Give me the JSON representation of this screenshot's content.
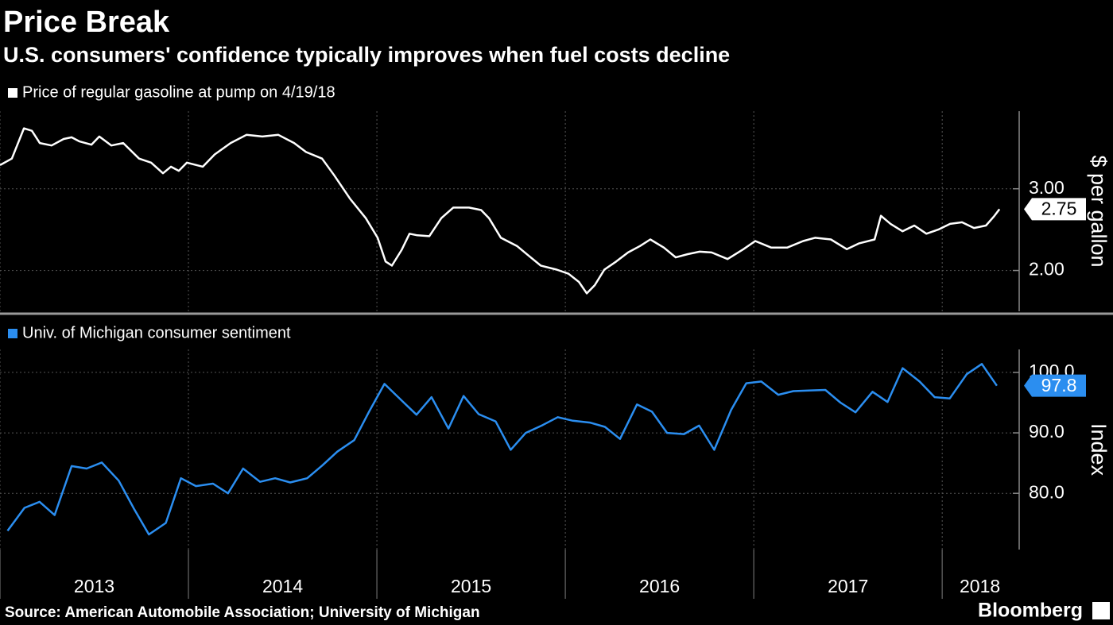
{
  "title": "Price Break",
  "subtitle": "U.S. consumers' confidence typically improves when fuel costs decline",
  "source": "Source: American Automobile Association; University of Michigan",
  "brand": "Bloomberg",
  "chart_data": [
    {
      "type": "line",
      "y_label": "$ per gallon",
      "grid": true,
      "xlim": [
        2013,
        2018.4
      ],
      "xticks": [
        2013,
        2014,
        2015,
        2016,
        2017,
        2018
      ],
      "ylim": [
        1.5,
        3.95
      ],
      "yticks": [
        {
          "value": 2,
          "label": "2.00"
        },
        {
          "value": 3,
          "label": "3.00"
        }
      ],
      "x": [
        2013.0,
        2013.063,
        2013.127,
        2013.169,
        2013.211,
        2013.274,
        2013.338,
        2013.38,
        2013.422,
        2013.485,
        2013.527,
        2013.591,
        2013.654,
        2013.738,
        2013.802,
        2013.865,
        2013.907,
        2013.949,
        2013.992,
        2014.076,
        2014.139,
        2014.224,
        2014.308,
        2014.392,
        2014.477,
        2014.561,
        2014.624,
        2014.709,
        2014.772,
        2014.857,
        2014.941,
        2015.004,
        2015.046,
        2015.08,
        2015.131,
        2015.173,
        2015.215,
        2015.278,
        2015.342,
        2015.405,
        2015.489,
        2015.553,
        2015.595,
        2015.658,
        2015.743,
        2015.806,
        2015.869,
        2015.954,
        2016.017,
        2016.072,
        2016.114,
        2016.156,
        2016.207,
        2016.27,
        2016.333,
        2016.397,
        2016.451,
        2016.523,
        2016.586,
        2016.65,
        2016.713,
        2016.776,
        2016.861,
        2016.945,
        2017.008,
        2017.093,
        2017.177,
        2017.262,
        2017.325,
        2017.409,
        2017.494,
        2017.557,
        2017.641,
        2017.675,
        2017.726,
        2017.789,
        2017.852,
        2017.916,
        2017.979,
        2018.042,
        2018.105,
        2018.169,
        2018.232,
        2018.274,
        2018.304
      ],
      "series": [
        {
          "name": "Price of regular gasoline at pump  on 4/19/18",
          "color": "#ffffff",
          "values": [
            3.29,
            3.37,
            3.74,
            3.71,
            3.56,
            3.53,
            3.61,
            3.63,
            3.58,
            3.54,
            3.64,
            3.53,
            3.56,
            3.37,
            3.32,
            3.19,
            3.27,
            3.22,
            3.32,
            3.27,
            3.42,
            3.56,
            3.66,
            3.64,
            3.66,
            3.56,
            3.45,
            3.37,
            3.17,
            2.88,
            2.64,
            2.4,
            2.11,
            2.06,
            2.25,
            2.45,
            2.43,
            2.42,
            2.64,
            2.77,
            2.77,
            2.74,
            2.64,
            2.4,
            2.3,
            2.18,
            2.06,
            2.01,
            1.96,
            1.86,
            1.72,
            1.82,
            2.01,
            2.11,
            2.22,
            2.3,
            2.38,
            2.28,
            2.16,
            2.2,
            2.23,
            2.22,
            2.14,
            2.26,
            2.36,
            2.28,
            2.28,
            2.36,
            2.4,
            2.38,
            2.26,
            2.33,
            2.38,
            2.67,
            2.57,
            2.48,
            2.55,
            2.45,
            2.5,
            2.57,
            2.59,
            2.52,
            2.55,
            2.66,
            2.75
          ]
        }
      ]
    },
    {
      "type": "line",
      "y_label": "Index",
      "grid": true,
      "xlim": [
        2013,
        2018.4
      ],
      "xticks": [
        2013,
        2014,
        2015,
        2016,
        2017,
        2018
      ],
      "ylim": [
        70.7,
        103.8
      ],
      "yticks": [
        {
          "value": 80,
          "label": "80.0"
        },
        {
          "value": 90,
          "label": "90.0"
        },
        {
          "value": 100,
          "label": "100.0"
        }
      ],
      "x": [
        2013.04,
        2013.13,
        2013.21,
        2013.29,
        2013.38,
        2013.46,
        2013.54,
        2013.63,
        2013.71,
        2013.79,
        2013.88,
        2013.96,
        2014.04,
        2014.13,
        2014.21,
        2014.29,
        2014.38,
        2014.46,
        2014.54,
        2014.63,
        2014.71,
        2014.79,
        2014.88,
        2014.96,
        2015.04,
        2015.13,
        2015.21,
        2015.29,
        2015.38,
        2015.46,
        2015.54,
        2015.63,
        2015.71,
        2015.79,
        2015.88,
        2015.96,
        2016.04,
        2016.13,
        2016.21,
        2016.29,
        2016.38,
        2016.46,
        2016.54,
        2016.63,
        2016.71,
        2016.79,
        2016.88,
        2016.96,
        2017.04,
        2017.13,
        2017.21,
        2017.29,
        2017.38,
        2017.46,
        2017.54,
        2017.63,
        2017.71,
        2017.79,
        2017.88,
        2017.96,
        2018.04,
        2018.13,
        2018.21,
        2018.29
      ],
      "series": [
        {
          "name": "Univ. of Michigan consumer sentiment",
          "color": "#2b8ef0",
          "values": [
            73.8,
            77.6,
            78.6,
            76.4,
            84.5,
            84.1,
            85.1,
            82.1,
            77.5,
            73.2,
            75.1,
            82.5,
            81.2,
            81.6,
            80.0,
            84.1,
            81.9,
            82.5,
            81.8,
            82.5,
            84.6,
            86.9,
            88.8,
            93.6,
            98.1,
            95.4,
            93.0,
            95.9,
            90.7,
            96.1,
            93.1,
            91.9,
            87.2,
            90.0,
            91.3,
            92.6,
            92.0,
            91.7,
            91.0,
            89.0,
            94.7,
            93.5,
            90.0,
            89.8,
            91.2,
            87.2,
            93.8,
            98.2,
            98.5,
            96.3,
            96.9,
            97.0,
            97.1,
            95.0,
            93.4,
            96.8,
            95.1,
            100.7,
            98.5,
            95.9,
            95.7,
            99.7,
            101.4,
            97.8
          ]
        }
      ]
    }
  ]
}
